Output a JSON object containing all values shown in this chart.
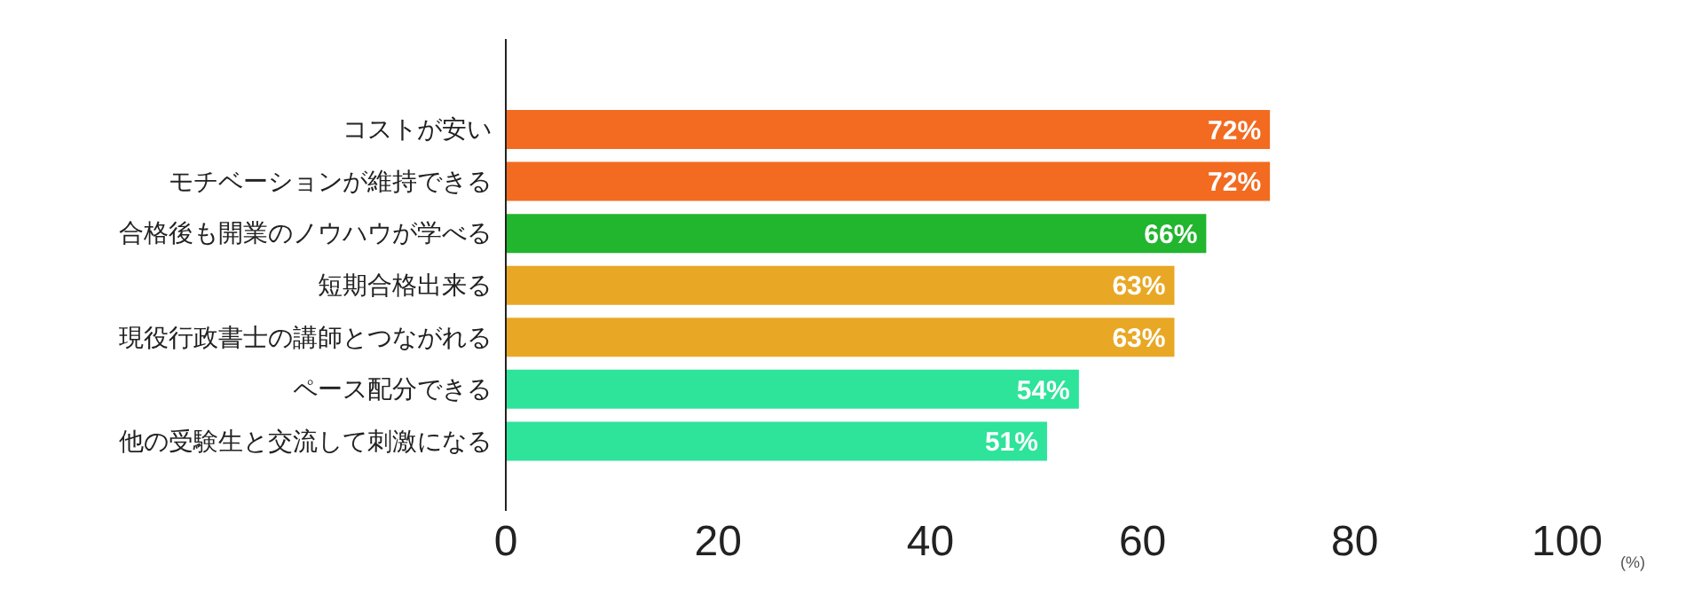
{
  "chart_data": {
    "type": "bar",
    "orientation": "horizontal",
    "categories": [
      "コストが安い",
      "モチベーションが維持できる",
      "合格後も開業のノウハウが学べる",
      "短期合格出来る",
      "現役行政書士の講師とつながれる",
      "ペース配分できる",
      "他の受験生と交流して刺激になる"
    ],
    "values": [
      72,
      72,
      66,
      63,
      63,
      54,
      51
    ],
    "colors": [
      "#f26b21",
      "#f26b21",
      "#22b52e",
      "#e8a825",
      "#e8a825",
      "#2ee39a",
      "#2ee39a"
    ],
    "value_labels": [
      "72%",
      "72%",
      "66%",
      "63%",
      "63%",
      "54%",
      "51%"
    ],
    "xlim": [
      0,
      100
    ],
    "xticks": [
      0,
      20,
      40,
      60,
      80,
      100
    ],
    "xlabel": "(%)",
    "grid": false,
    "legend": false
  }
}
